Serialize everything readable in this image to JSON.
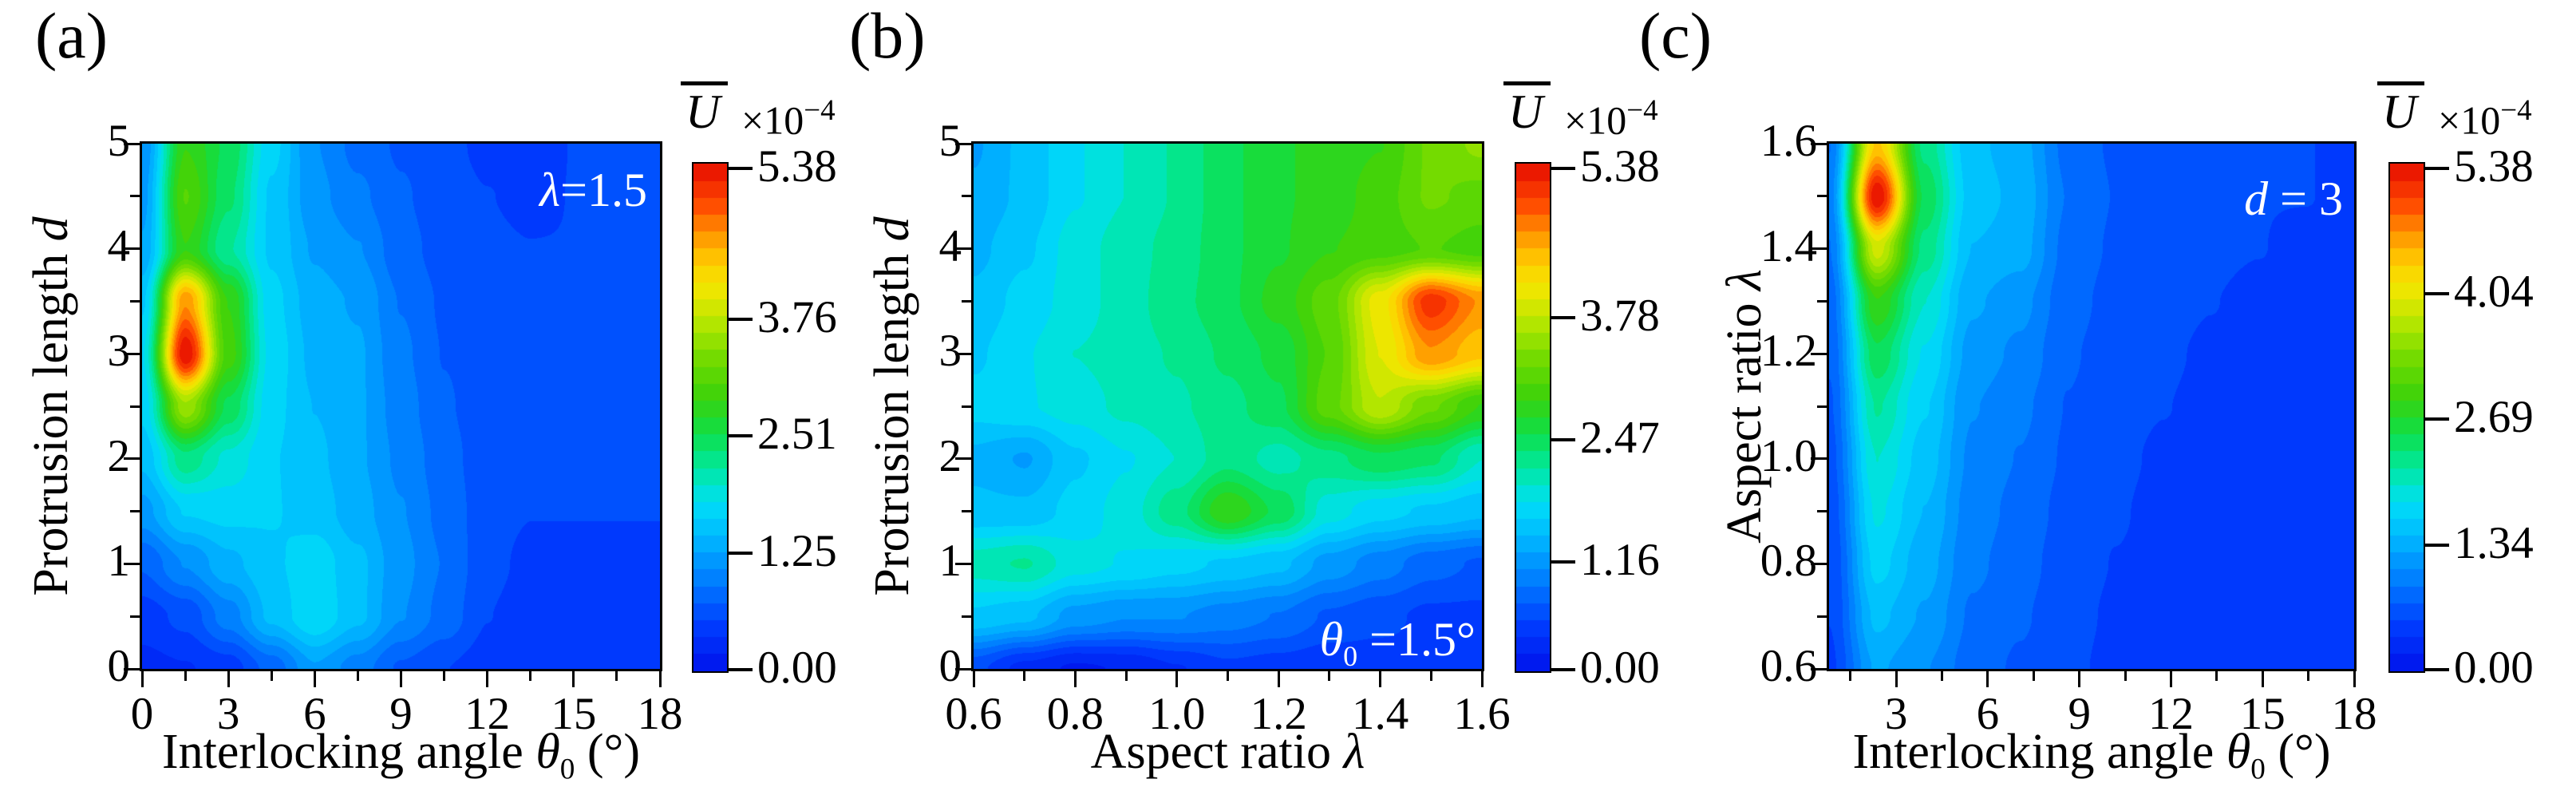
{
  "chart_data": [
    {
      "type": "heatmap",
      "panel_label": "(a)",
      "annotation": {
        "var": "λ",
        "sub": "",
        "text": "=1.5"
      },
      "x": {
        "label": {
          "text": "Interlocking angle ",
          "var": "θ",
          "sub": "0",
          "unit": " (°)"
        },
        "min": 0,
        "max": 18,
        "ticks": [
          {
            "v": 0,
            "t": "0"
          },
          {
            "v": 3,
            "t": "3"
          },
          {
            "v": 6,
            "t": "6"
          },
          {
            "v": 9,
            "t": "9"
          },
          {
            "v": 12,
            "t": "12"
          },
          {
            "v": 15,
            "t": "15"
          },
          {
            "v": 18,
            "t": "18"
          }
        ]
      },
      "y": {
        "label": {
          "text": "Protrusion length ",
          "var": "d"
        },
        "min": 0,
        "max": 5,
        "ticks": [
          {
            "v": 0,
            "t": "0"
          },
          {
            "v": 1,
            "t": "1"
          },
          {
            "v": 2,
            "t": "2"
          },
          {
            "v": 3,
            "t": "3"
          },
          {
            "v": 4,
            "t": "4"
          },
          {
            "v": 5,
            "t": "5"
          }
        ]
      },
      "colorbar": {
        "var": "U",
        "multiplier": "×10",
        "exponent": "−4",
        "vmax": 5.45,
        "ticks": [
          {
            "v": 5.38,
            "t": "5.38"
          },
          {
            "v": 3.76,
            "t": "3.76"
          },
          {
            "v": 2.51,
            "t": "2.51"
          },
          {
            "v": 1.25,
            "t": "1.25"
          },
          {
            "v": 0,
            "t": "0.00"
          }
        ]
      },
      "value_scale": "×10⁻⁴",
      "grid": {
        "x": [
          0,
          1.5,
          3,
          4.5,
          6,
          7.5,
          9,
          10.5,
          12,
          13.5,
          15,
          16.5,
          18
        ],
        "y": [
          5,
          4.5,
          4,
          3.5,
          3,
          2.5,
          2,
          1.5,
          1,
          0.5,
          0
        ],
        "values": [
          [
            1.1,
            2.9,
            2.5,
            1.7,
            1.1,
            0.85,
            0.7,
            0.6,
            0.5,
            0.45,
            0.55,
            0.55,
            0.55
          ],
          [
            1.2,
            3.1,
            2.4,
            1.6,
            1.15,
            0.95,
            0.75,
            0.62,
            0.55,
            0.5,
            0.55,
            0.55,
            0.55
          ],
          [
            1.3,
            2.9,
            2.2,
            1.6,
            1.25,
            1.1,
            0.8,
            0.65,
            0.58,
            0.55,
            0.55,
            0.55,
            0.55
          ],
          [
            1.6,
            4.7,
            2.9,
            1.7,
            1.35,
            1.25,
            0.9,
            0.7,
            0.6,
            0.55,
            0.55,
            0.55,
            0.55
          ],
          [
            1.8,
            5.45,
            3.0,
            1.75,
            1.4,
            1.3,
            0.95,
            0.72,
            0.62,
            0.55,
            0.55,
            0.55,
            0.55
          ],
          [
            1.7,
            3.6,
            2.5,
            1.7,
            1.45,
            1.3,
            1.0,
            0.75,
            0.62,
            0.55,
            0.55,
            0.55,
            0.55
          ],
          [
            1.5,
            2.3,
            1.95,
            1.65,
            1.5,
            1.3,
            1.05,
            0.8,
            0.62,
            0.55,
            0.55,
            0.55,
            0.55
          ],
          [
            1.2,
            1.65,
            1.7,
            1.65,
            1.55,
            1.35,
            1.1,
            0.85,
            0.62,
            0.55,
            0.55,
            0.55,
            0.55
          ],
          [
            0.75,
            1.1,
            1.4,
            1.6,
            1.75,
            1.5,
            1.15,
            0.9,
            0.6,
            0.5,
            0.5,
            0.5,
            0.5
          ],
          [
            0.45,
            0.6,
            1.0,
            1.5,
            1.8,
            1.5,
            1.1,
            0.85,
            0.55,
            0.45,
            0.45,
            0.45,
            0.45
          ],
          [
            0.3,
            0.35,
            0.45,
            0.8,
            1.25,
            1.0,
            0.7,
            0.55,
            0.45,
            0.4,
            0.4,
            0.4,
            0.4
          ]
        ]
      }
    },
    {
      "type": "heatmap",
      "panel_label": "(b)",
      "annotation": {
        "var": "θ",
        "sub": "0",
        "text": " =1.5°"
      },
      "x": {
        "label": {
          "text": "Aspect ratio ",
          "var": "λ",
          "sub": "",
          "unit": ""
        },
        "min": 0.6,
        "max": 1.6,
        "ticks": [
          {
            "v": 0.6,
            "t": "0.6"
          },
          {
            "v": 0.8,
            "t": "0.8"
          },
          {
            "v": 1.0,
            "t": "1.0"
          },
          {
            "v": 1.2,
            "t": "1.2"
          },
          {
            "v": 1.4,
            "t": "1.4"
          },
          {
            "v": 1.6,
            "t": "1.6"
          }
        ]
      },
      "y": {
        "label": {
          "text": "Protrusion length ",
          "var": "d"
        },
        "min": 0,
        "max": 5,
        "ticks": [
          {
            "v": 0,
            "t": "0"
          },
          {
            "v": 1,
            "t": "1"
          },
          {
            "v": 2,
            "t": "2"
          },
          {
            "v": 3,
            "t": "3"
          },
          {
            "v": 4,
            "t": "4"
          },
          {
            "v": 5,
            "t": "5"
          }
        ]
      },
      "colorbar": {
        "var": "U",
        "multiplier": "×10",
        "exponent": "−4",
        "vmax": 5.45,
        "ticks": [
          {
            "v": 5.38,
            "t": "5.38"
          },
          {
            "v": 3.78,
            "t": "3.78"
          },
          {
            "v": 2.47,
            "t": "2.47"
          },
          {
            "v": 1.16,
            "t": "1.16"
          },
          {
            "v": 0,
            "t": "0.00"
          }
        ]
      },
      "value_scale": "×10⁻⁴",
      "grid": {
        "x": [
          0.6,
          0.7,
          0.8,
          0.9,
          1.0,
          1.1,
          1.2,
          1.3,
          1.4,
          1.5,
          1.6
        ],
        "y": [
          5,
          4.5,
          4,
          3.5,
          3,
          2.5,
          2,
          1.5,
          1,
          0.5,
          0
        ],
        "values": [
          [
            1.25,
            1.5,
            1.8,
            2.0,
            2.2,
            2.5,
            2.7,
            2.8,
            2.9,
            3.3,
            3.5
          ],
          [
            1.3,
            1.5,
            1.8,
            2.0,
            2.2,
            2.5,
            2.7,
            2.8,
            3.0,
            3.3,
            3.2
          ],
          [
            1.4,
            1.6,
            1.9,
            2.1,
            2.25,
            2.5,
            2.7,
            2.9,
            3.0,
            3.1,
            3.0
          ],
          [
            1.5,
            1.7,
            1.9,
            2.1,
            2.3,
            2.5,
            2.8,
            3.2,
            4.1,
            5.2,
            4.7
          ],
          [
            1.6,
            1.8,
            2.0,
            2.1,
            2.2,
            2.4,
            2.6,
            3.1,
            4.0,
            4.7,
            4.4
          ],
          [
            1.7,
            1.8,
            1.9,
            2.05,
            2.15,
            2.3,
            2.5,
            3.2,
            3.8,
            3.3,
            2.9
          ],
          [
            1.4,
            1.25,
            1.6,
            1.8,
            2.0,
            2.3,
            2.1,
            2.3,
            2.5,
            2.4,
            2.0
          ],
          [
            1.5,
            1.5,
            1.7,
            1.9,
            2.3,
            2.9,
            2.5,
            1.9,
            1.7,
            1.6,
            1.5
          ],
          [
            2.1,
            2.2,
            1.9,
            1.8,
            1.7,
            1.6,
            1.5,
            1.2,
            1.0,
            0.8,
            0.7
          ],
          [
            1.6,
            1.5,
            1.2,
            1.1,
            1.1,
            1.0,
            0.9,
            0.7,
            0.6,
            0.5,
            0.5
          ],
          [
            0.6,
            0.3,
            0.15,
            0.2,
            0.35,
            0.5,
            0.45,
            0.4,
            0.45,
            0.5,
            0.5
          ]
        ]
      }
    },
    {
      "type": "heatmap",
      "panel_label": "(c)",
      "annotation": {
        "var": "d",
        "sub": "",
        "text": " = 3"
      },
      "x": {
        "label": {
          "text": "Interlocking angle ",
          "var": "θ",
          "sub": "0",
          "unit": " (°)"
        },
        "min": 0.8,
        "max": 18,
        "ticks": [
          {
            "v": 3,
            "t": "3"
          },
          {
            "v": 6,
            "t": "6"
          },
          {
            "v": 9,
            "t": "9"
          },
          {
            "v": 12,
            "t": "12"
          },
          {
            "v": 15,
            "t": "15"
          },
          {
            "v": 18,
            "t": "18"
          }
        ]
      },
      "y": {
        "label": {
          "text": "Aspect ratio ",
          "var": "λ"
        },
        "min": 0.6,
        "max": 1.6,
        "ticks": [
          {
            "v": 0.6,
            "t": "0.6"
          },
          {
            "v": 0.8,
            "t": "0.8"
          },
          {
            "v": 1.0,
            "t": "1.0"
          },
          {
            "v": 1.2,
            "t": "1.2"
          },
          {
            "v": 1.4,
            "t": "1.4"
          },
          {
            "v": 1.6,
            "t": "1.6"
          }
        ]
      },
      "colorbar": {
        "var": "U",
        "multiplier": "×10",
        "exponent": "−4",
        "vmax": 5.45,
        "ticks": [
          {
            "v": 5.38,
            "t": "5.38"
          },
          {
            "v": 4.04,
            "t": "4.04"
          },
          {
            "v": 2.69,
            "t": "2.69"
          },
          {
            "v": 1.34,
            "t": "1.34"
          },
          {
            "v": 0,
            "t": "0.00"
          }
        ]
      },
      "value_scale": "×10⁻⁴",
      "grid": {
        "x": [
          0.8,
          2.36,
          3.93,
          5.49,
          7.05,
          8.62,
          10.18,
          11.75,
          13.31,
          14.87,
          16.44,
          18
        ],
        "y": [
          1.6,
          1.5,
          1.4,
          1.3,
          1.2,
          1.1,
          1.0,
          0.9,
          0.8,
          0.7,
          0.6
        ],
        "values": [
          [
            0.9,
            4.4,
            2.3,
            1.5,
            1.35,
            0.85,
            0.7,
            0.65,
            0.6,
            0.55,
            0.55,
            0.5
          ],
          [
            1.0,
            5.45,
            2.5,
            1.55,
            1.4,
            0.9,
            0.72,
            0.65,
            0.6,
            0.55,
            0.55,
            0.5
          ],
          [
            0.9,
            3.9,
            2.3,
            1.45,
            1.35,
            0.85,
            0.7,
            0.62,
            0.58,
            0.55,
            0.5,
            0.5
          ],
          [
            0.8,
            2.9,
            2.0,
            1.3,
            1.15,
            0.8,
            0.66,
            0.6,
            0.55,
            0.5,
            0.5,
            0.5
          ],
          [
            0.75,
            2.5,
            1.8,
            1.2,
            1.05,
            0.75,
            0.63,
            0.57,
            0.52,
            0.5,
            0.5,
            0.48
          ],
          [
            0.7,
            2.2,
            1.65,
            1.1,
            0.95,
            0.72,
            0.6,
            0.55,
            0.5,
            0.48,
            0.48,
            0.48
          ],
          [
            0.65,
            2.0,
            1.55,
            1.05,
            0.9,
            0.7,
            0.58,
            0.52,
            0.5,
            0.46,
            0.46,
            0.46
          ],
          [
            0.6,
            1.85,
            1.45,
            1.0,
            0.85,
            0.66,
            0.56,
            0.5,
            0.48,
            0.44,
            0.44,
            0.45
          ],
          [
            0.55,
            1.7,
            1.35,
            0.95,
            0.8,
            0.63,
            0.54,
            0.5,
            0.46,
            0.4,
            0.42,
            0.44
          ],
          [
            0.55,
            1.5,
            1.25,
            0.88,
            0.75,
            0.6,
            0.52,
            0.48,
            0.45,
            0.4,
            0.4,
            0.42
          ],
          [
            0.5,
            1.3,
            1.1,
            0.82,
            0.7,
            0.58,
            0.5,
            0.46,
            0.44,
            0.4,
            0.38,
            0.4
          ]
        ]
      }
    }
  ],
  "colors": {
    "background": "#ffffff",
    "axis": "#000000",
    "annotation_text": "#ffffff",
    "colormap_low": "#0012eb",
    "colormap_mid": "#10de46",
    "colormap_high": "#e60c00"
  }
}
